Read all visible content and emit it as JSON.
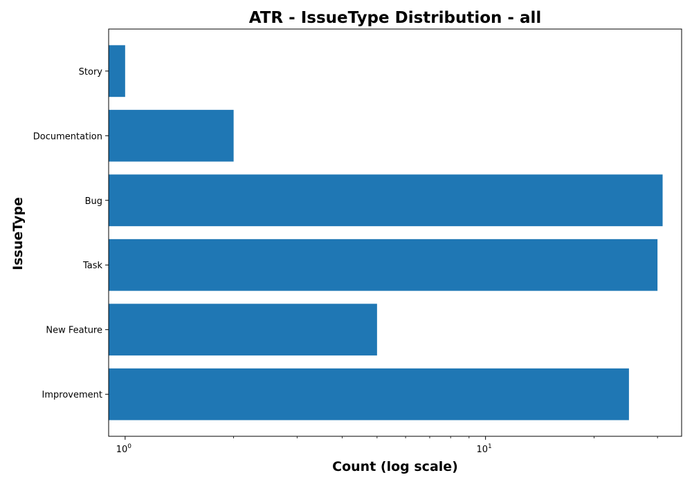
{
  "chart_data": {
    "type": "bar",
    "orientation": "horizontal",
    "title": "ATR - IssueType Distribution - all",
    "xlabel": "Count (log scale)",
    "ylabel": "IssueType",
    "x_scale": "log",
    "xlim": [
      0.9,
      35
    ],
    "x_ticks": [
      {
        "value": 1,
        "base": "10",
        "exp": "0"
      },
      {
        "value": 10,
        "base": "10",
        "exp": "1"
      }
    ],
    "categories": [
      "Improvement",
      "New Feature",
      "Task",
      "Bug",
      "Documentation",
      "Story"
    ],
    "values": [
      25,
      5,
      30,
      31,
      2,
      1
    ],
    "color": "#1f77b4",
    "grid": false,
    "legend": "none"
  }
}
